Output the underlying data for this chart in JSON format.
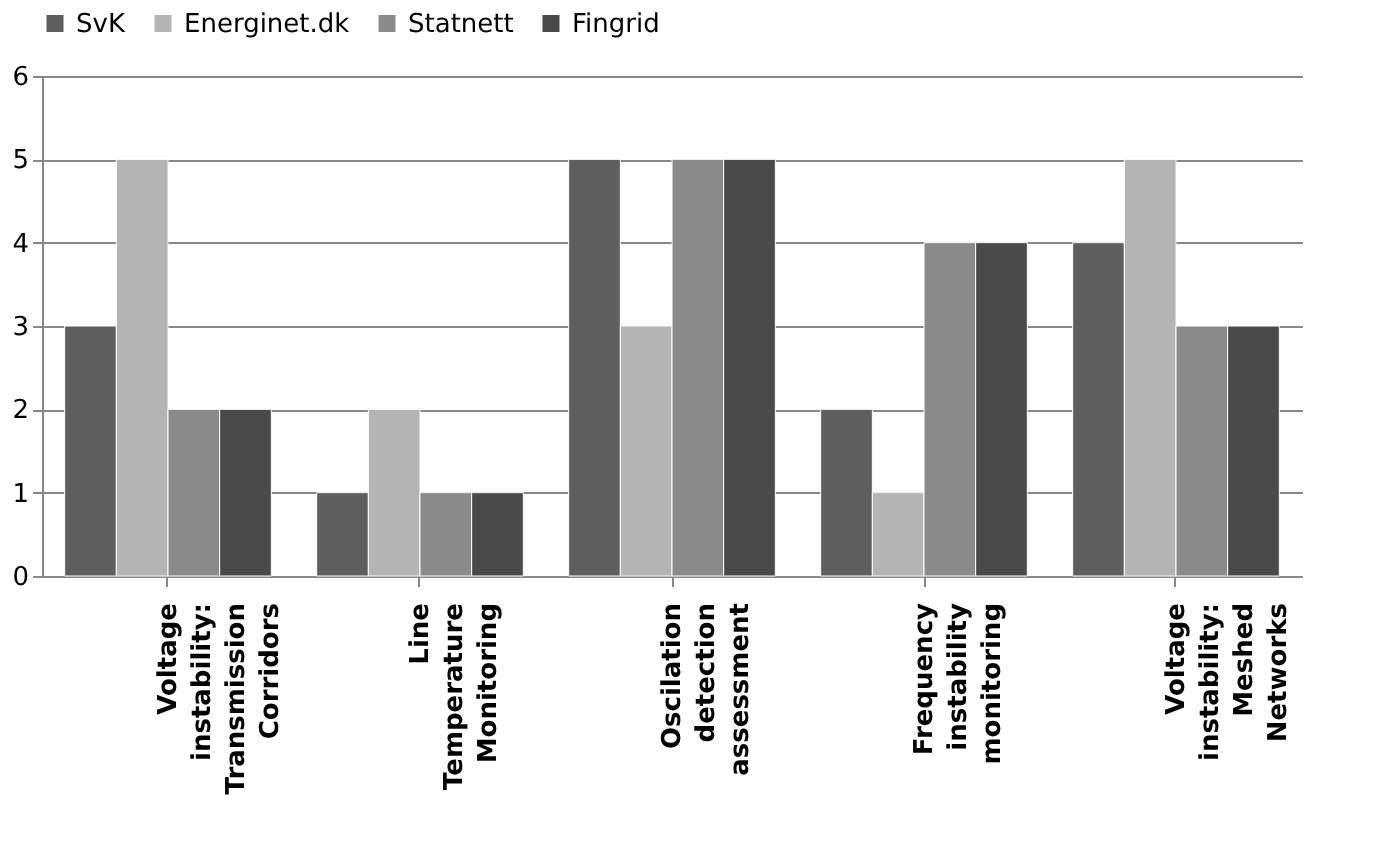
{
  "chart_data": {
    "type": "bar",
    "categories": [
      "Voltage\ninstability:\nTransmission\nCorridors",
      "Line\nTemperature\nMonitoring",
      "Oscilation\ndetection\nassessment",
      "Frequency\ninstability\nmonitoring",
      "Voltage\ninstability:\nMeshed\nNetworks"
    ],
    "series": [
      {
        "name": "SvK",
        "color": "#5f5f5f",
        "values": [
          3,
          1,
          5,
          2,
          4
        ]
      },
      {
        "name": "Energinet.dk",
        "color": "#b4b4b4",
        "values": [
          5,
          2,
          3,
          1,
          5
        ]
      },
      {
        "name": "Statnett",
        "color": "#8a8a8a",
        "values": [
          2,
          1,
          5,
          4,
          3
        ]
      },
      {
        "name": "Fingrid",
        "color": "#4a4a4a",
        "values": [
          2,
          1,
          5,
          4,
          3
        ]
      }
    ],
    "ylim": [
      0,
      6
    ],
    "yticks": [
      0,
      1,
      2,
      3,
      4,
      5,
      6
    ],
    "grid": "y",
    "legend": "top"
  }
}
